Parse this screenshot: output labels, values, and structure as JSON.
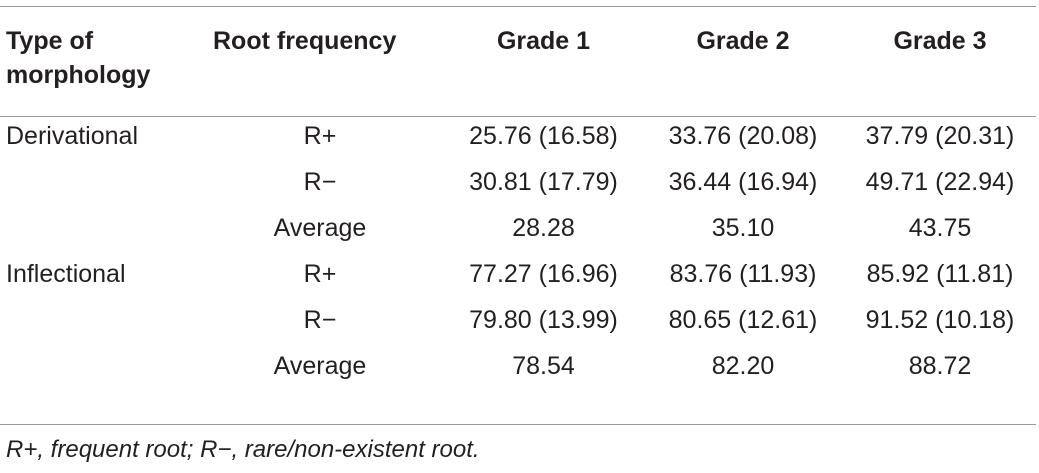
{
  "table": {
    "headers": {
      "col1": "Type of morphology",
      "col2": "Root frequency",
      "col3": "Grade 1",
      "col4": "Grade 2",
      "col5": "Grade 3"
    },
    "rows": [
      [
        "Derivational",
        "R+",
        "25.76 (16.58)",
        "33.76 (20.08)",
        "37.79 (20.31)"
      ],
      [
        "",
        "R−",
        "30.81 (17.79)",
        "36.44 (16.94)",
        "49.71 (22.94)"
      ],
      [
        "",
        "Average",
        "28.28",
        "35.10",
        "43.75"
      ],
      [
        "Inflectional",
        "R+",
        "77.27 (16.96)",
        "83.76 (11.93)",
        "85.92 (11.81)"
      ],
      [
        "",
        "R−",
        "79.80 (13.99)",
        "80.65 (12.61)",
        "91.52 (10.18)"
      ],
      [
        "",
        "Average",
        "78.54",
        "82.20",
        "88.72"
      ]
    ]
  },
  "footnote": "R+, frequent root; R−, rare/non-existent root."
}
